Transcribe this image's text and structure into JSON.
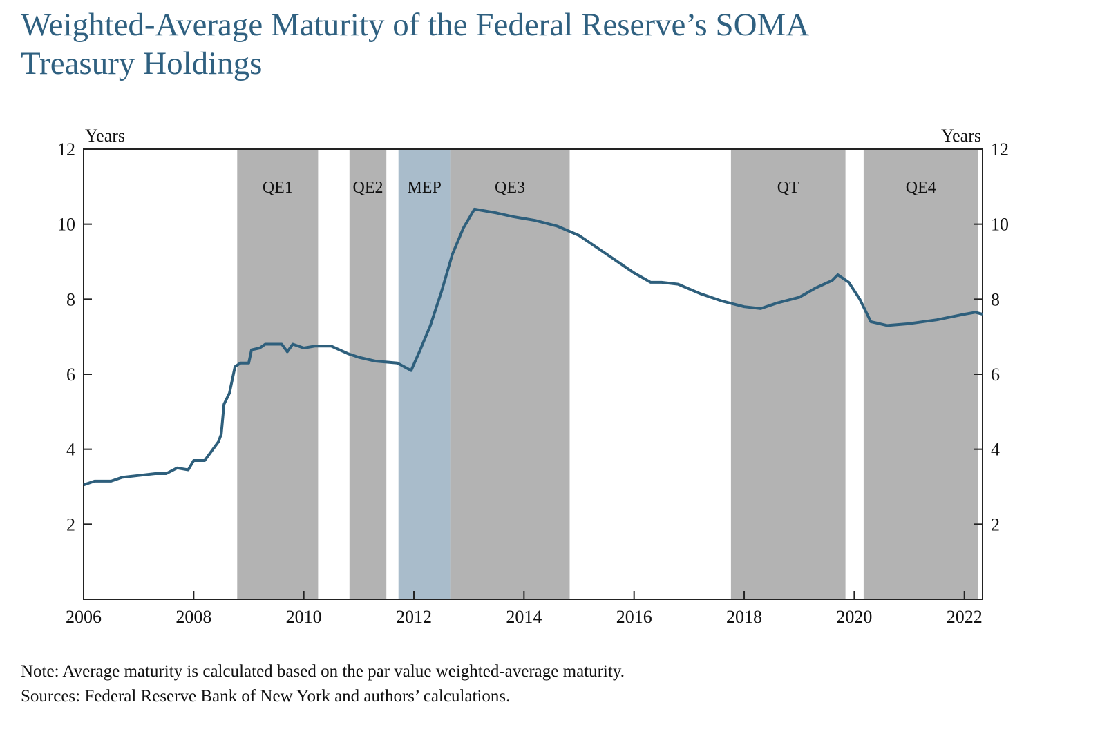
{
  "title_line1": "Weighted-Average Maturity of the Federal Reserve’s SOMA",
  "title_line2": "Treasury Holdings",
  "note": "Note: Average maturity is calculated based on the par value weighted-average maturity.",
  "sources": "Sources: Federal Reserve Bank of New York and authors’ calculations.",
  "chart_data": {
    "type": "line",
    "title": "Weighted-Average Maturity of the Federal Reserve’s SOMA Treasury Holdings",
    "ylabel_left": "Years",
    "ylabel_right": "Years",
    "xlim": [
      2006,
      2022.33
    ],
    "ylim": [
      0,
      12
    ],
    "x_ticks": [
      2006,
      2008,
      2010,
      2012,
      2014,
      2016,
      2018,
      2020,
      2022
    ],
    "y_ticks": [
      2,
      4,
      6,
      8,
      10,
      12
    ],
    "colors": {
      "line": "#2e5f7c",
      "shade": "#b3b3b3",
      "mep": "#a9bccb",
      "title": "#2f6080"
    },
    "periods": [
      {
        "label": "QE1",
        "start": 2008.79,
        "end": 2010.26,
        "kind": "shade"
      },
      {
        "label": "QE2",
        "start": 2010.83,
        "end": 2011.5,
        "kind": "shade"
      },
      {
        "label": "MEP",
        "start": 2011.72,
        "end": 2012.66,
        "kind": "mep"
      },
      {
        "label": "QE3",
        "start": 2012.66,
        "end": 2014.83,
        "kind": "shade"
      },
      {
        "label": "QT",
        "start": 2017.76,
        "end": 2019.84,
        "kind": "shade"
      },
      {
        "label": "QE4",
        "start": 2020.17,
        "end": 2022.25,
        "kind": "shade"
      }
    ],
    "series": [
      {
        "name": "Weighted-average maturity",
        "x": [
          2006.0,
          2006.2,
          2006.5,
          2006.7,
          2007.0,
          2007.3,
          2007.5,
          2007.7,
          2007.9,
          2008.0,
          2008.2,
          2008.3,
          2008.45,
          2008.5,
          2008.55,
          2008.65,
          2008.75,
          2008.85,
          2009.0,
          2009.05,
          2009.2,
          2009.3,
          2009.6,
          2009.7,
          2009.8,
          2010.0,
          2010.2,
          2010.5,
          2010.8,
          2011.0,
          2011.3,
          2011.7,
          2011.95,
          2012.1,
          2012.3,
          2012.5,
          2012.7,
          2012.9,
          2013.1,
          2013.5,
          2013.8,
          2014.2,
          2014.6,
          2015.0,
          2015.5,
          2016.0,
          2016.3,
          2016.5,
          2016.8,
          2017.2,
          2017.6,
          2018.0,
          2018.3,
          2018.6,
          2019.0,
          2019.3,
          2019.6,
          2019.7,
          2019.9,
          2020.1,
          2020.3,
          2020.6,
          2021.0,
          2021.5,
          2022.0,
          2022.2,
          2022.33
        ],
        "y": [
          3.05,
          3.15,
          3.15,
          3.25,
          3.3,
          3.35,
          3.35,
          3.5,
          3.45,
          3.7,
          3.7,
          3.9,
          4.2,
          4.4,
          5.2,
          5.5,
          6.2,
          6.3,
          6.3,
          6.65,
          6.7,
          6.8,
          6.8,
          6.6,
          6.8,
          6.7,
          6.75,
          6.75,
          6.55,
          6.45,
          6.35,
          6.3,
          6.1,
          6.6,
          7.3,
          8.2,
          9.2,
          9.9,
          10.4,
          10.3,
          10.2,
          10.1,
          9.95,
          9.7,
          9.2,
          8.7,
          8.45,
          8.45,
          8.4,
          8.15,
          7.95,
          7.8,
          7.75,
          7.9,
          8.05,
          8.3,
          8.5,
          8.65,
          8.45,
          8.0,
          7.4,
          7.3,
          7.35,
          7.45,
          7.6,
          7.65,
          7.6
        ]
      }
    ]
  }
}
